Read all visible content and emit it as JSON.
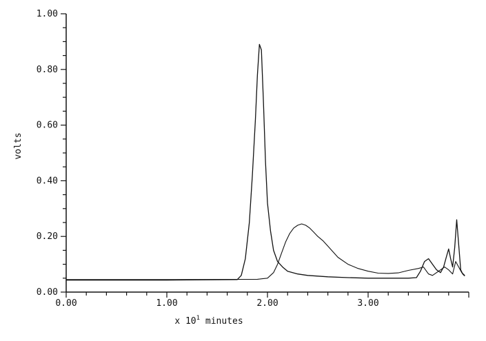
{
  "chart_data": {
    "type": "line",
    "title": "",
    "xlabel": "x 10",
    "xlabel_superscript": "1",
    "xlabel_suffix": " minutes",
    "ylabel": "volts",
    "xlim": [
      0,
      4.0
    ],
    "ylim": [
      0,
      1.0
    ],
    "x_ticks": [
      0.0,
      1.0,
      2.0,
      3.0
    ],
    "x_tick_labels": [
      "0.00",
      "1.00",
      "2.00",
      "3.00"
    ],
    "y_ticks": [
      0.0,
      0.2,
      0.4,
      0.6,
      0.8,
      1.0
    ],
    "y_tick_labels": [
      "0.00",
      "0.20",
      "0.40",
      "0.60",
      "0.80",
      "1.00"
    ],
    "grid": false,
    "legend": "none",
    "series": [
      {
        "x": [
          0.0,
          1.0,
          1.7,
          1.74,
          1.78,
          1.82,
          1.85,
          1.88,
          1.9,
          1.92,
          1.94,
          1.96,
          1.98,
          2.0,
          2.03,
          2.06,
          2.1,
          2.15,
          2.2,
          2.3,
          2.4,
          2.6,
          2.8,
          3.0,
          3.2,
          3.4,
          3.48,
          3.52,
          3.56,
          3.6,
          3.64,
          3.68,
          3.72,
          3.75,
          3.78,
          3.8,
          3.82,
          3.84,
          3.86,
          3.88,
          3.9,
          3.92,
          3.94,
          3.96
        ],
        "y": [
          0.043,
          0.043,
          0.045,
          0.06,
          0.12,
          0.25,
          0.42,
          0.62,
          0.78,
          0.89,
          0.87,
          0.68,
          0.47,
          0.32,
          0.22,
          0.15,
          0.11,
          0.09,
          0.075,
          0.065,
          0.06,
          0.055,
          0.052,
          0.05,
          0.05,
          0.05,
          0.052,
          0.075,
          0.11,
          0.12,
          0.1,
          0.08,
          0.07,
          0.09,
          0.13,
          0.155,
          0.12,
          0.09,
          0.16,
          0.26,
          0.17,
          0.08,
          0.065,
          0.058
        ]
      },
      {
        "x": [
          0.0,
          1.0,
          1.9,
          2.0,
          2.06,
          2.1,
          2.14,
          2.18,
          2.22,
          2.26,
          2.3,
          2.34,
          2.38,
          2.42,
          2.46,
          2.5,
          2.55,
          2.6,
          2.65,
          2.7,
          2.8,
          2.9,
          3.0,
          3.1,
          3.2,
          3.3,
          3.4,
          3.5,
          3.55,
          3.58,
          3.6,
          3.64,
          3.7,
          3.76,
          3.8,
          3.84,
          3.87,
          3.9,
          3.93,
          3.96
        ],
        "y": [
          0.045,
          0.045,
          0.046,
          0.05,
          0.07,
          0.1,
          0.14,
          0.18,
          0.21,
          0.23,
          0.24,
          0.245,
          0.24,
          0.23,
          0.215,
          0.2,
          0.185,
          0.165,
          0.145,
          0.125,
          0.1,
          0.085,
          0.075,
          0.068,
          0.067,
          0.069,
          0.078,
          0.085,
          0.09,
          0.075,
          0.065,
          0.06,
          0.075,
          0.09,
          0.08,
          0.065,
          0.11,
          0.09,
          0.07,
          0.06
        ]
      }
    ]
  }
}
